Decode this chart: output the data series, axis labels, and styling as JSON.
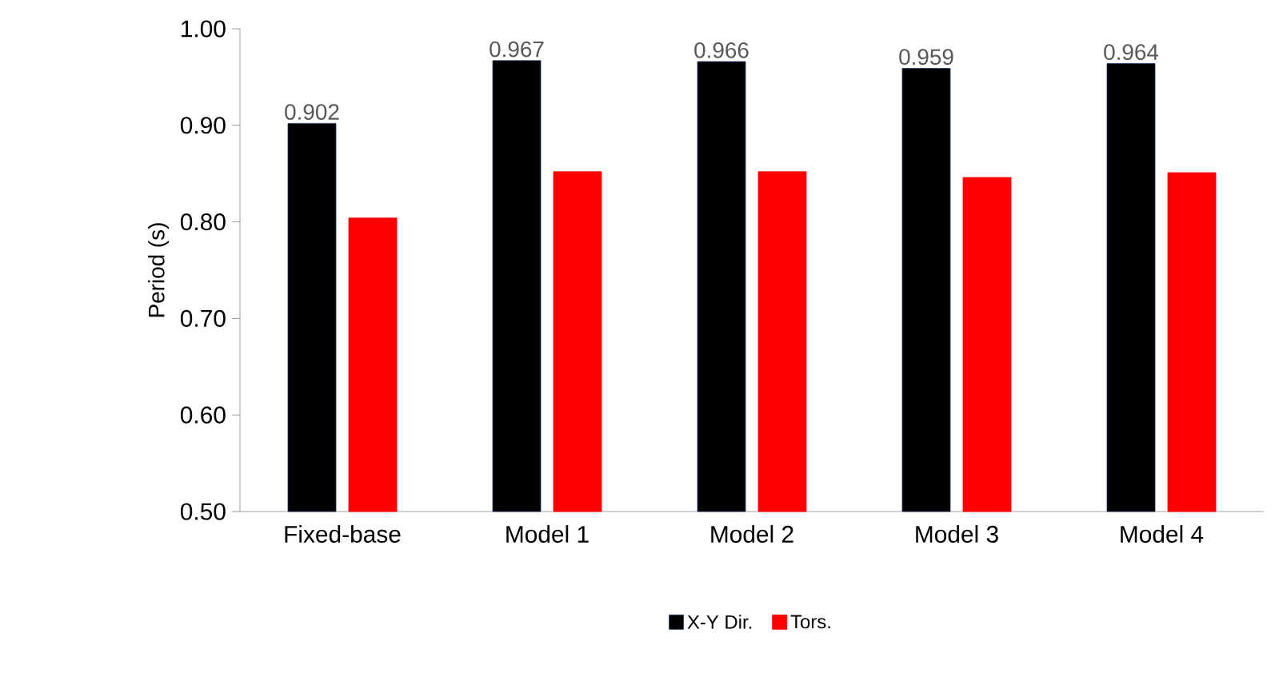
{
  "chart_data": {
    "type": "bar",
    "ylabel": "Period (s)",
    "categories": [
      "Fixed-base",
      "Model 1",
      "Model 2",
      "Model 3",
      "Model 4"
    ],
    "series": [
      {
        "name": "X-Y Dir.",
        "color": "#000000",
        "values": [
          0.902,
          0.967,
          0.966,
          0.959,
          0.964
        ],
        "value_labels": [
          "0.902",
          "0.967",
          "0.966",
          "0.959",
          "0.964"
        ]
      },
      {
        "name": "Tors.",
        "color": "#ff0000",
        "values": [
          0.804,
          0.852,
          0.852,
          0.846,
          0.851
        ]
      }
    ],
    "ylim": [
      0.5,
      1.0
    ],
    "yticks": [
      {
        "value": 0.5,
        "label": "0.50"
      },
      {
        "value": 0.6,
        "label": "0.60"
      },
      {
        "value": 0.7,
        "label": "0.70"
      },
      {
        "value": 0.8,
        "label": "0.80"
      },
      {
        "value": 0.9,
        "label": "0.90"
      },
      {
        "value": 1.0,
        "label": "1.00"
      }
    ],
    "grid": false,
    "legend": "bottom"
  }
}
